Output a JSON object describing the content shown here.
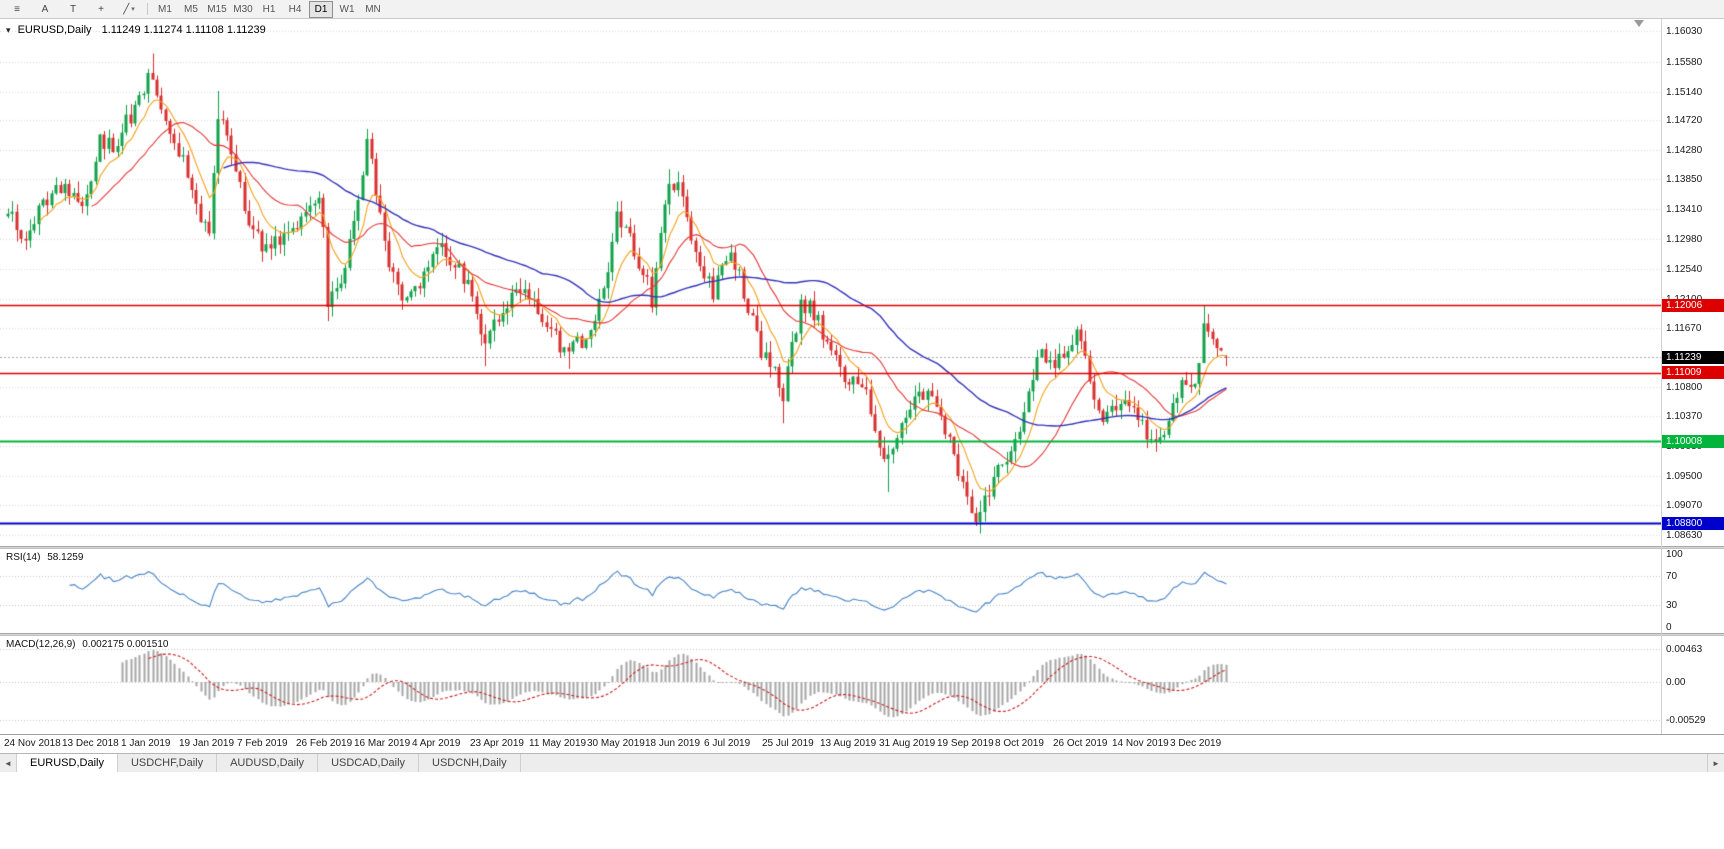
{
  "toolbar": {
    "tools": [
      {
        "name": "charts-menu",
        "glyph": "≡"
      },
      {
        "name": "cursor-tool",
        "glyph": "A"
      },
      {
        "name": "text-tool",
        "glyph": "T"
      },
      {
        "name": "crosshair-tool",
        "glyph": "+"
      },
      {
        "name": "draw-tools",
        "glyph": "╱",
        "caret": "▾"
      }
    ],
    "timeframes": [
      "M1",
      "M5",
      "M15",
      "M30",
      "H1",
      "H4",
      "D1",
      "W1",
      "MN"
    ],
    "active_timeframe": "D1"
  },
  "chart": {
    "dropdown_icon": "▾",
    "title_symbol": "EURUSD,Daily",
    "title_ohlc": "1.11249 1.11274 1.11108 1.11239",
    "current_price": {
      "label": "1.11239",
      "price": 1.11239,
      "badge_color": "#000000",
      "line_color": "#aaaaaa"
    },
    "levels": [
      {
        "label": "1.12006",
        "price": 1.12006,
        "color": "#dd0000",
        "line_width": 1.4
      },
      {
        "label": "1.11009",
        "price": 1.11009,
        "color": "#dd0000",
        "line_width": 1.4
      },
      {
        "label": "1.10008",
        "price": 1.10008,
        "color": "#00b43c",
        "line_width": 1.8
      },
      {
        "label": "1.08800",
        "price": 1.088,
        "color": "#0000cc",
        "line_width": 2.2
      }
    ],
    "y_ticks": [
      "1.16030",
      "1.15580",
      "1.15140",
      "1.14720",
      "1.14280",
      "1.13850",
      "1.13410",
      "1.12980",
      "1.12540",
      "1.12100",
      "1.11670",
      "1.10800",
      "1.10370",
      "1.09930",
      "1.09500",
      "1.09070",
      "1.08630"
    ],
    "x_labels": [
      "24 Nov 2018",
      "13 Dec 2018",
      "1 Jan 2019",
      "19 Jan 2019",
      "7 Feb 2019",
      "26 Feb 2019",
      "16 Mar 2019",
      "4 Apr 2019",
      "23 Apr 2019",
      "11 May 2019",
      "30 May 2019",
      "18 Jun 2019",
      "6 Jul 2019",
      "25 Jul 2019",
      "13 Aug 2019",
      "31 Aug 2019",
      "19 Sep 2019",
      "8 Oct 2019",
      "26 Oct 2019",
      "14 Nov 2019",
      "3 Dec 2019"
    ]
  },
  "indicators": {
    "rsi": {
      "label": "RSI(14)",
      "value": "58.1259",
      "period": 14,
      "color": "#4a86c8",
      "ticks": [
        "100",
        "70",
        "30",
        "0"
      ],
      "guide_levels": [
        70,
        30
      ]
    },
    "macd": {
      "label": "MACD(12,26,9)",
      "value": "0.002175 0.001510",
      "fast": 12,
      "slow": 26,
      "signal": 9,
      "hist_color": "#a6a6a6",
      "signal_color": "#cc2222",
      "ticks": [
        "0.00463",
        "0.00",
        "-0.00529"
      ]
    }
  },
  "chart_data": {
    "type": "candlestick",
    "symbol": "EURUSD",
    "timeframe": "Daily",
    "title": "EURUSD,Daily",
    "num_bars": 279,
    "ylim": [
      1.0863,
      1.1603
    ],
    "up_color": "#12a24b",
    "down_color": "#d93030",
    "last_bar": {
      "open": 1.11249,
      "high": 1.11274,
      "low": 1.11108,
      "close": 1.11239
    },
    "anchors": [
      [
        0,
        1.1335
      ],
      [
        4,
        1.13
      ],
      [
        8,
        1.1345
      ],
      [
        13,
        1.138
      ],
      [
        17,
        1.1345
      ],
      [
        21,
        1.144
      ],
      [
        24,
        1.143
      ],
      [
        26,
        1.146
      ],
      [
        30,
        1.15
      ],
      [
        33,
        1.1545
      ],
      [
        35,
        1.148
      ],
      [
        38,
        1.145
      ],
      [
        41,
        1.139
      ],
      [
        44,
        1.133
      ],
      [
        46,
        1.131
      ],
      [
        48,
        1.148
      ],
      [
        51,
        1.143
      ],
      [
        54,
        1.134
      ],
      [
        59,
        1.128
      ],
      [
        63,
        1.13
      ],
      [
        67,
        1.1335
      ],
      [
        71,
        1.137
      ],
      [
        72,
        1.131
      ],
      [
        73,
        1.12
      ],
      [
        76,
        1.124
      ],
      [
        79,
        1.132
      ],
      [
        82,
        1.1435
      ],
      [
        84,
        1.137
      ],
      [
        87,
        1.126
      ],
      [
        90,
        1.122
      ],
      [
        94,
        1.1225
      ],
      [
        98,
        1.129
      ],
      [
        102,
        1.126
      ],
      [
        105,
        1.123
      ],
      [
        109,
        1.115
      ],
      [
        112,
        1.118
      ],
      [
        115,
        1.121
      ],
      [
        118,
        1.122
      ],
      [
        121,
        1.12
      ],
      [
        124,
        1.116
      ],
      [
        128,
        1.113
      ],
      [
        131,
        1.115
      ],
      [
        134,
        1.117
      ],
      [
        137,
        1.125
      ],
      [
        139,
        1.133
      ],
      [
        142,
        1.13
      ],
      [
        145,
        1.125
      ],
      [
        147,
        1.121
      ],
      [
        149,
        1.131
      ],
      [
        151,
        1.139
      ],
      [
        154,
        1.136
      ],
      [
        156,
        1.129
      ],
      [
        159,
        1.125
      ],
      [
        161,
        1.122
      ],
      [
        164,
        1.127
      ],
      [
        166,
        1.126
      ],
      [
        169,
        1.12
      ],
      [
        172,
        1.113
      ],
      [
        175,
        1.11
      ],
      [
        177,
        1.106
      ],
      [
        179,
        1.114
      ],
      [
        181,
        1.12
      ],
      [
        184,
        1.119
      ],
      [
        187,
        1.115
      ],
      [
        190,
        1.11
      ],
      [
        193,
        1.109
      ],
      [
        196,
        1.108
      ],
      [
        199,
        1.098
      ],
      [
        201,
        1.097
      ],
      [
        203,
        1.1
      ],
      [
        206,
        1.105
      ],
      [
        209,
        1.107
      ],
      [
        212,
        1.105
      ],
      [
        215,
        1.1
      ],
      [
        218,
        1.093
      ],
      [
        221,
        1.0895
      ],
      [
        224,
        1.093
      ],
      [
        227,
        1.097
      ],
      [
        230,
        1.1
      ],
      [
        233,
        1.107
      ],
      [
        235,
        1.113
      ],
      [
        238,
        1.111
      ],
      [
        241,
        1.113
      ],
      [
        244,
        1.116
      ],
      [
        247,
        1.109
      ],
      [
        250,
        1.102
      ],
      [
        253,
        1.105
      ],
      [
        256,
        1.106
      ],
      [
        259,
        1.102
      ],
      [
        262,
        1.101
      ],
      [
        264,
        1.1
      ],
      [
        266,
        1.105
      ],
      [
        268,
        1.108
      ],
      [
        271,
        1.109
      ],
      [
        272,
        1.111
      ],
      [
        273,
        1.1185
      ],
      [
        274,
        1.116
      ],
      [
        276,
        1.1145
      ],
      [
        278,
        1.11239
      ]
    ],
    "extreme_wicks": [
      {
        "i": 33,
        "high": 1.157
      },
      {
        "i": 48,
        "high": 1.1515
      },
      {
        "i": 73,
        "low": 1.1177
      },
      {
        "i": 82,
        "high": 1.1448
      },
      {
        "i": 109,
        "low": 1.1111
      },
      {
        "i": 128,
        "low": 1.1107
      },
      {
        "i": 151,
        "high": 1.14
      },
      {
        "i": 177,
        "low": 1.1027
      },
      {
        "i": 201,
        "low": 1.0926
      },
      {
        "i": 221,
        "low": 1.0879
      },
      {
        "i": 273,
        "high": 1.12
      }
    ],
    "moving_averages": [
      {
        "period": 8,
        "method": "ema",
        "color": "#f6a21d"
      },
      {
        "period": 20,
        "method": "sma",
        "color": "#e33a3a"
      },
      {
        "period": 50,
        "method": "sma",
        "color": "#3535bb"
      }
    ]
  },
  "tabs": {
    "scroll_left_icon": "◄",
    "scroll_right_icon": "►",
    "items": [
      "EURUSD,Daily",
      "USDCHF,Daily",
      "AUDUSD,Daily",
      "USDCAD,Daily",
      "USDCNH,Daily"
    ],
    "active": "EURUSD,Daily"
  },
  "palette": {
    "grid": "#dadada",
    "axis_text": "#1a1a1a",
    "background": "#ffffff"
  }
}
